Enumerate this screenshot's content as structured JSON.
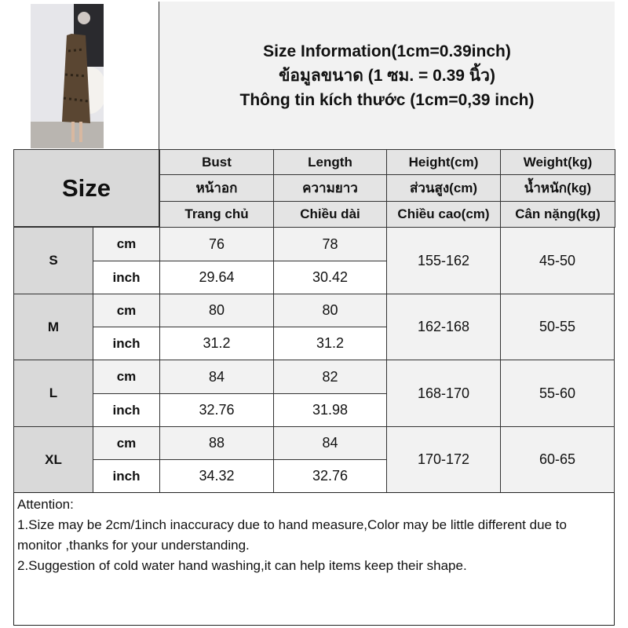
{
  "title": {
    "lines": [
      "Size Information(1cm=0.39inch)",
      "ข้อมูลขนาด (1 ซม. = 0.39 นิ้ว)",
      "Thông tin kích thước (1cm=0,39 inch)"
    ]
  },
  "size_label": "Size",
  "headers": [
    [
      "Bust",
      "หน้าอก",
      "Trang chủ"
    ],
    [
      "Length",
      "ความยาว",
      "Chiều dài"
    ],
    [
      "Height(cm)",
      "ส่วนสูง(cm)",
      "Chiều cao(cm)"
    ],
    [
      "Weight(kg)",
      "น้ำหนัก(kg)",
      "Cân nặng(kg)"
    ]
  ],
  "units": {
    "cm": "cm",
    "inch": "inch"
  },
  "rows": [
    {
      "size": "S",
      "cm": [
        "76",
        "78"
      ],
      "inch": [
        "29.64",
        "30.42"
      ],
      "height": "155-162",
      "weight": "45-50"
    },
    {
      "size": "M",
      "cm": [
        "80",
        "80"
      ],
      "inch": [
        "31.2",
        "31.2"
      ],
      "height": "162-168",
      "weight": "50-55"
    },
    {
      "size": "L",
      "cm": [
        "84",
        "82"
      ],
      "inch": [
        "32.76",
        "31.98"
      ],
      "height": "168-170",
      "weight": "55-60"
    },
    {
      "size": "XL",
      "cm": [
        "88",
        "84"
      ],
      "inch": [
        "34.32",
        "32.76"
      ],
      "height": "170-172",
      "weight": "60-65"
    }
  ],
  "attention": {
    "heading": "Attention:",
    "lines": [
      "1.Size may be 2cm/1inch inaccuracy due to hand measure,Color may be little different due to monitor ,thanks for your understanding.",
      "2.Suggestion of cold water hand washing,it can help items keep their shape."
    ]
  },
  "colors": {
    "header_bg": "#e4e4e4",
    "size_bg": "#d9d9d9",
    "light_bg": "#f2f2f2"
  }
}
